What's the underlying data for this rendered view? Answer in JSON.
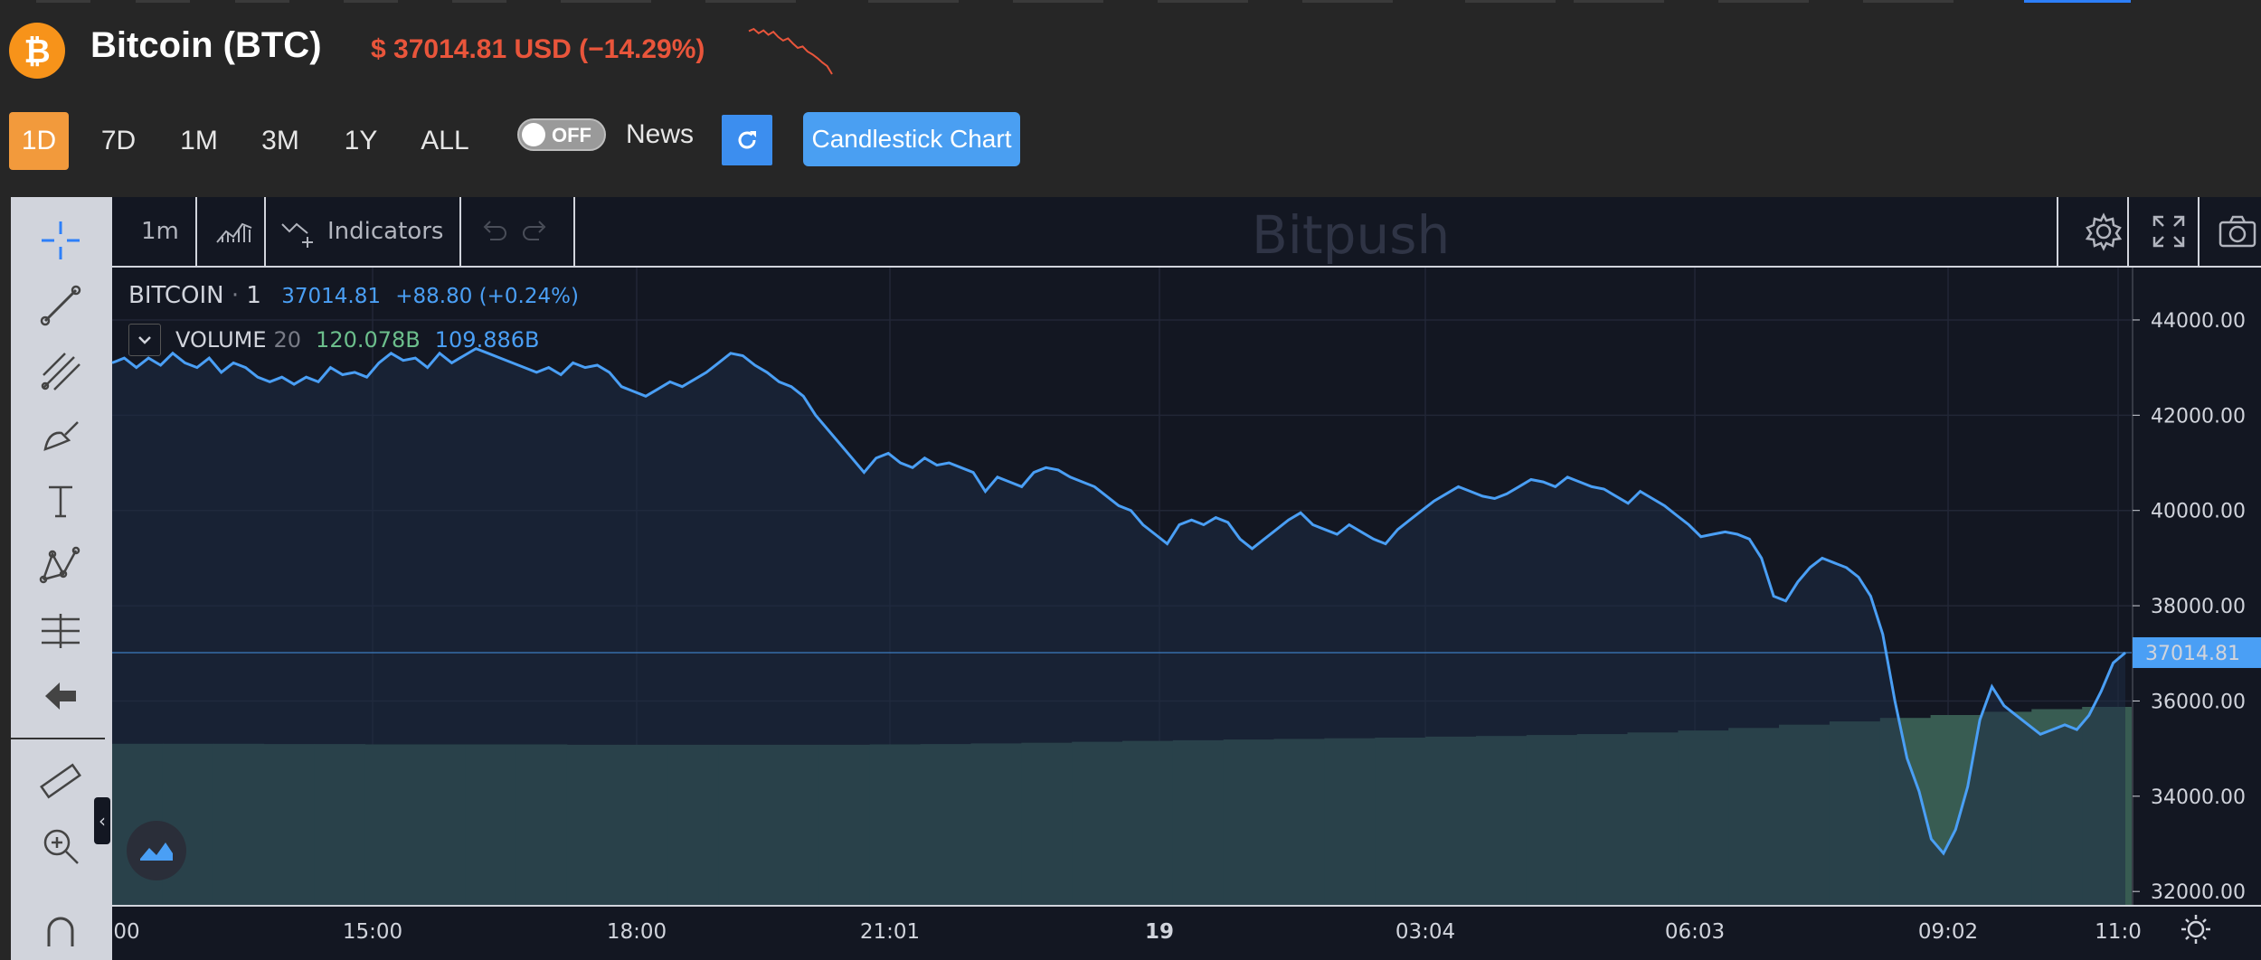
{
  "header": {
    "coin_icon": "bitcoin-icon",
    "title": "Bitcoin (BTC)",
    "price_text": "$ 37014.81 USD (−14.29%)",
    "price_color": "#e9553b",
    "sparkline": [
      42.9,
      43.2,
      42.6,
      43.0,
      42.4,
      42.8,
      42.1,
      41.6,
      41.9,
      41.2,
      40.6,
      40.8,
      40.1,
      39.7,
      39.2,
      38.6,
      38.1,
      37.0
    ]
  },
  "toolbar": {
    "ranges": [
      "1D",
      "7D",
      "1M",
      "3M",
      "1Y",
      "ALL"
    ],
    "active_range": "1D",
    "toggle_text": "OFF",
    "news_label": "News",
    "refresh_icon": "refresh-icon",
    "candlestick_label": "Candlestick Chart"
  },
  "chart": {
    "interval": "1m",
    "chart_type_icon": "area-chart-icon",
    "indicators_label": "Indicators",
    "watermark": "Bitpush",
    "legend": {
      "symbol": "BITCOIN",
      "sep": "·",
      "interval": "1",
      "last": "37014.81",
      "change": "+88.80 (+0.24%)"
    },
    "volume_legend": {
      "label": "VOLUME",
      "length": "20",
      "value1": "120.078B",
      "value2": "109.886B"
    },
    "colors": {
      "line": "#4a9ff5",
      "volume": "#385c52",
      "price_label": "#4a9ff5"
    }
  },
  "chart_data": {
    "type": "line",
    "title": "",
    "xlabel": "",
    "ylabel": "",
    "ylim": [
      31700,
      45100
    ],
    "y_ticks": [
      "44000.00",
      "42000.00",
      "40000.00",
      "38000.00",
      "36000.00",
      "34000.00",
      "32000.00"
    ],
    "x_ticks": [
      "00",
      "15:00",
      "18:00",
      "21:01",
      "19",
      "03:04",
      "06:03",
      "09:02",
      "11:0"
    ],
    "last_price_label": "37014.81",
    "series": [
      {
        "values": [
          43100,
          43200,
          43000,
          43200,
          43050,
          43300,
          43100,
          43000,
          43200,
          42900,
          43100,
          43000,
          42800,
          42700,
          42800,
          42650,
          42800,
          42700,
          43000,
          42850,
          42900,
          42800,
          43100,
          43300,
          43150,
          43200,
          43000,
          43300,
          43100,
          43250,
          43400,
          43300,
          43200,
          43100,
          43000,
          42900,
          43000,
          42850,
          43100,
          43000,
          43050,
          42900,
          42600,
          42500,
          42400,
          42550,
          42700,
          42600,
          42750,
          42900,
          43100,
          43300,
          43250,
          43050,
          42900,
          42700,
          42600,
          42400,
          42000,
          41700,
          41400,
          41100,
          40800,
          41100,
          41200,
          41000,
          40900,
          41100,
          40950,
          41000,
          40900,
          40800,
          40400,
          40700,
          40600,
          40500,
          40800,
          40900,
          40850,
          40700,
          40600,
          40500,
          40300,
          40100,
          40000,
          39700,
          39500,
          39300,
          39700,
          39800,
          39700,
          39850,
          39750,
          39400,
          39200,
          39400,
          39600,
          39800,
          39950,
          39700,
          39600,
          39500,
          39700,
          39550,
          39400,
          39300,
          39600,
          39800,
          40000,
          40200,
          40350,
          40500,
          40400,
          40300,
          40250,
          40350,
          40500,
          40650,
          40600,
          40500,
          40700,
          40600,
          40500,
          40450,
          40300,
          40150,
          40400,
          40250,
          40100,
          39900,
          39700,
          39450,
          39500,
          39550,
          39500,
          39400,
          39000,
          38200,
          38100,
          38500,
          38800,
          39000,
          38900,
          38800,
          38600,
          38200,
          37400,
          36000,
          34800,
          34100,
          33100,
          32800,
          33300,
          34200,
          35600,
          36300,
          35900,
          35700,
          35500,
          35300,
          35400,
          35500,
          35400,
          35700,
          36200,
          36800,
          37014.81
        ]
      },
      {
        "name": "VOLUME",
        "values": [
          120.1,
          120.1,
          120.1,
          120.0,
          120.0,
          119.9,
          119.9,
          119.9,
          119.9,
          119.8,
          119.8,
          119.8,
          119.8,
          119.8,
          119.8,
          119.9,
          120.0,
          120.2,
          120.4,
          120.7,
          121.0,
          121.2,
          121.4,
          121.6,
          121.8,
          122.0,
          122.3,
          122.5,
          122.8,
          123.1,
          123.6,
          124.2,
          125.0,
          126.0,
          127.0,
          128.1,
          129.0,
          130.0,
          130.8,
          131.5
        ]
      }
    ]
  }
}
